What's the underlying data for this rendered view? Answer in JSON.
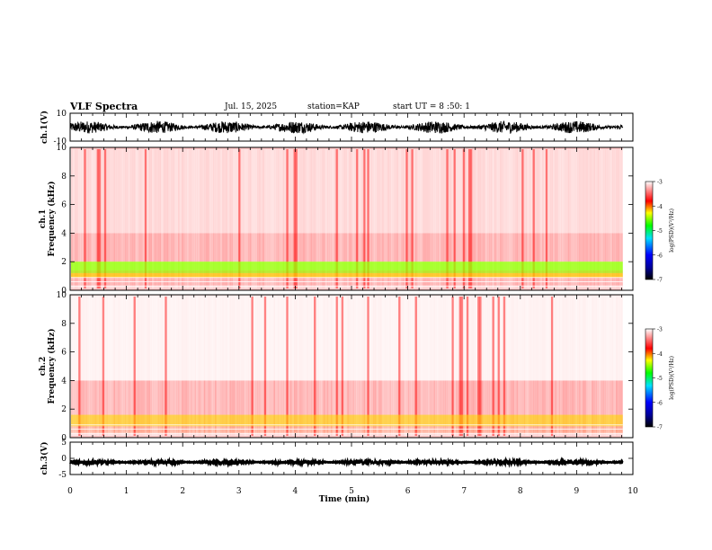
{
  "header": {
    "title": "VLF Spectra",
    "date": "Jul. 15, 2025",
    "station": "station=KAP",
    "start_ut": "start UT = 8 :50: 1"
  },
  "chart_data": [
    {
      "type": "line",
      "name": "ch1-waveform",
      "ylabel": "ch.1(V)",
      "ylim": [
        -10,
        10
      ],
      "yticks": [
        "10",
        "-10"
      ],
      "xlim": [
        0,
        10
      ],
      "data_extent_min": 9.82,
      "mean": 0,
      "amplitude": 4.5
    },
    {
      "type": "heatmap",
      "name": "ch1-spectrogram",
      "ylabel": "ch.1 Frequency (kHz)",
      "ylim": [
        0,
        10
      ],
      "yticks": [
        "0",
        "2",
        "4",
        "6",
        "8",
        "10"
      ],
      "xlim": [
        0,
        10
      ],
      "colorbar": {
        "label": "log(PSD)(V²/Hz)",
        "range": [
          -7,
          -3
        ],
        "ticks": [
          "-3",
          "-4",
          "-5",
          "-6",
          "-7"
        ]
      },
      "bands": [
        {
          "freq_khz": [
            0,
            0.3
          ],
          "log_psd": -3.3
        },
        {
          "freq_khz": [
            0.3,
            0.9
          ],
          "log_psd": -3.6
        },
        {
          "freq_khz": [
            0.9,
            1.4
          ],
          "log_psd": -3.9
        },
        {
          "freq_khz": [
            1.4,
            2.0
          ],
          "log_psd": -4.6
        },
        {
          "freq_khz": [
            2.0,
            4.0
          ],
          "log_psd": -3.6
        },
        {
          "freq_khz": [
            4.0,
            10.0
          ],
          "log_psd": -3.3
        }
      ]
    },
    {
      "type": "heatmap",
      "name": "ch2-spectrogram",
      "ylabel": "ch.2 Frequency (kHz)",
      "ylim": [
        0,
        10
      ],
      "yticks": [
        "0",
        "2",
        "4",
        "6",
        "8",
        "10"
      ],
      "xlim": [
        0,
        10
      ],
      "colorbar": {
        "label": "log(PSD)(V²/Hz)",
        "range": [
          -7,
          -3
        ],
        "ticks": [
          "-3",
          "-4",
          "-5",
          "-6",
          "-7"
        ]
      },
      "bands": [
        {
          "freq_khz": [
            0,
            0.3
          ],
          "log_psd": -3.3
        },
        {
          "freq_khz": [
            0.3,
            1.6
          ],
          "log_psd": -3.9
        },
        {
          "freq_khz": [
            1.6,
            2.2
          ],
          "log_psd": -3.6
        },
        {
          "freq_khz": [
            2.2,
            4.0
          ],
          "log_psd": -3.6
        },
        {
          "freq_khz": [
            4.0,
            10.0
          ],
          "log_psd": -3.1
        }
      ]
    },
    {
      "type": "line",
      "name": "ch3-waveform",
      "ylabel": "ch.3(V)",
      "ylim": [
        -5,
        5
      ],
      "yticks": [
        "5",
        "0",
        "-5"
      ],
      "xlim": [
        0,
        10
      ],
      "data_extent_min": 9.82,
      "mean": -1.2,
      "amplitude": 0.5
    }
  ],
  "x_axis": {
    "label": "Time (min)",
    "range": [
      0,
      10
    ],
    "ticks": [
      "0",
      "1",
      "2",
      "3",
      "4",
      "5",
      "6",
      "7",
      "8",
      "9",
      "10"
    ]
  },
  "colors": {
    "spectro_bg": "#ffffff",
    "scale": [
      "#000000",
      "#000088",
      "#0000ff",
      "#00ffff",
      "#00ff00",
      "#ffff00",
      "#ff0000",
      "#ffffff"
    ]
  }
}
